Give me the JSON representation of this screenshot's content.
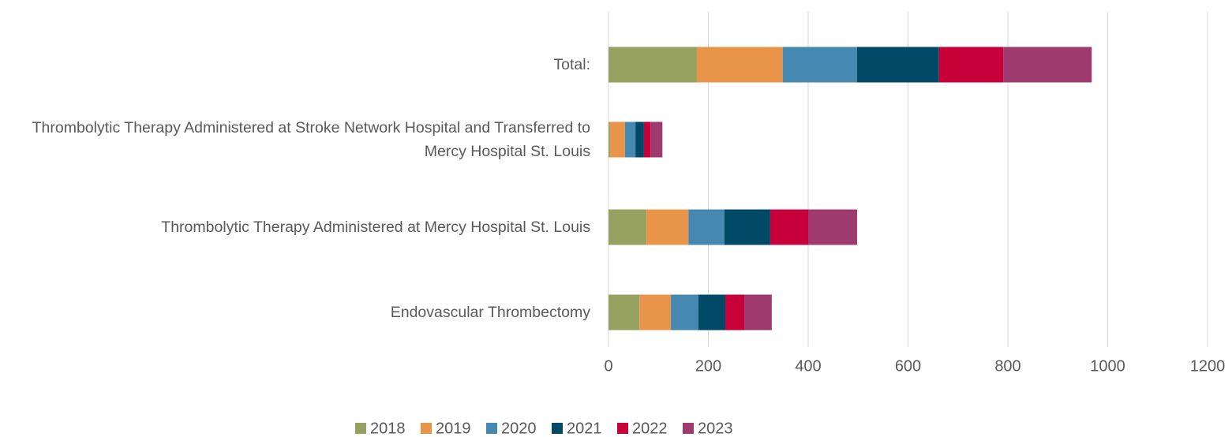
{
  "chart_data": {
    "type": "stacked_barh",
    "categories": [
      "Total:",
      "Thrombolytic Therapy Administered at Stroke Network Hospital and Transferred to Mercy Hospital St. Louis",
      "Thrombolytic Therapy Administered at Mercy Hospital St. Louis",
      "Endovascular Thrombectomy"
    ],
    "series": [
      {
        "name": "2018",
        "color": "#96a15f",
        "values": [
          177,
          3,
          76,
          62
        ]
      },
      {
        "name": "2019",
        "color": "#e8954a",
        "values": [
          172,
          30,
          84,
          63
        ]
      },
      {
        "name": "2020",
        "color": "#4589b3",
        "values": [
          149,
          21,
          72,
          55
        ]
      },
      {
        "name": "2021",
        "color": "#004a67",
        "values": [
          164,
          17,
          92,
          54
        ]
      },
      {
        "name": "2022",
        "color": "#c8003a",
        "values": [
          129,
          13,
          76,
          38
        ]
      },
      {
        "name": "2023",
        "color": "#9e3a6e",
        "values": [
          177,
          24,
          98,
          55
        ]
      }
    ],
    "xlim": [
      0,
      1200
    ],
    "xticks": [
      0,
      200,
      400,
      600,
      800,
      1000,
      1200
    ],
    "grid": true,
    "legend": "bottom"
  }
}
